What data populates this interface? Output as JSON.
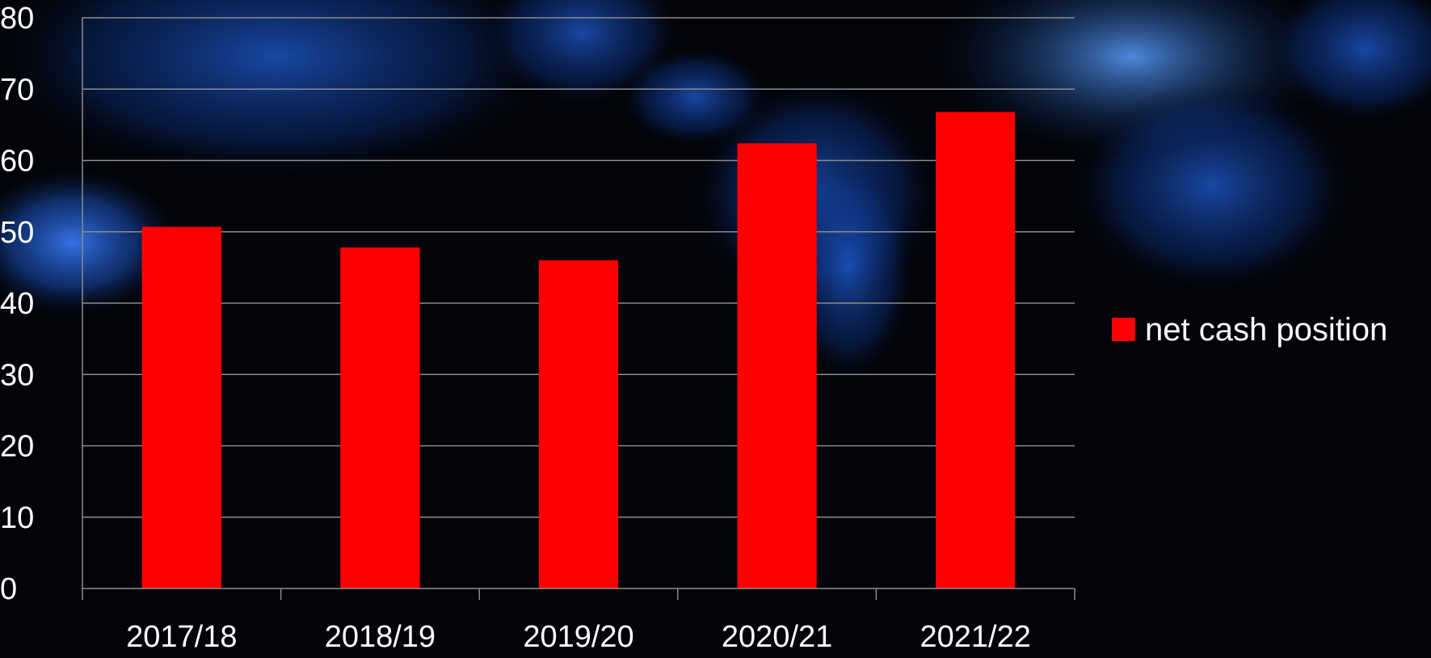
{
  "chart_data": {
    "type": "bar",
    "title": "",
    "xlabel": "",
    "ylabel": "",
    "categories": [
      "2017/18",
      "2018/19",
      "2019/20",
      "2020/21",
      "2021/22"
    ],
    "series": [
      {
        "name": "net cash position",
        "values": [
          50.7,
          47.8,
          46.0,
          62.4,
          66.8
        ],
        "color": "#ff0000"
      }
    ],
    "ylim": [
      0,
      80
    ],
    "yticks": [
      0,
      10,
      20,
      30,
      40,
      50,
      60,
      70,
      80
    ],
    "grid": true,
    "legend_position": "right",
    "text_color": "#ffffff",
    "gridline_color": "#8c8c8c",
    "background": "dark satellite night map"
  }
}
